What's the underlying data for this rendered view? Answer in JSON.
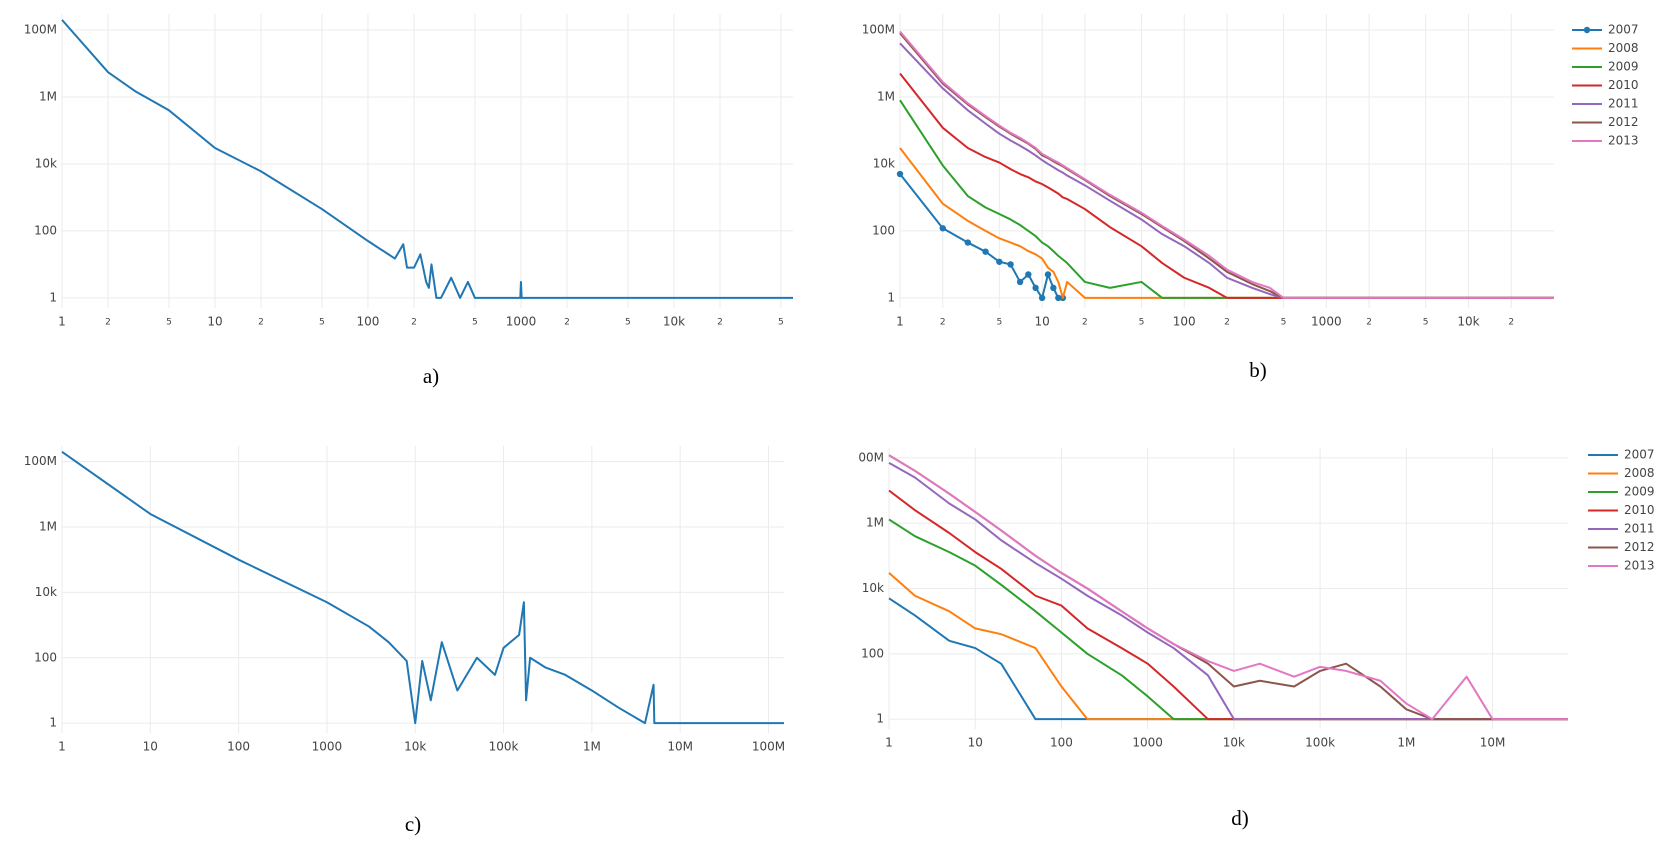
{
  "chart_data": [
    {
      "type": "line",
      "caption": "a)",
      "xscale": "log",
      "yscale": "log",
      "grid": true,
      "color": "#1f77b4",
      "xlim": [
        1,
        60000
      ],
      "ylim": [
        0.5,
        300000000.0
      ],
      "xticks": [
        1,
        2,
        5,
        10,
        {
          "value": 20,
          "label": "2"
        },
        {
          "value": 50,
          "label": "5"
        },
        100,
        {
          "value": 200,
          "label": "2"
        },
        {
          "value": 500,
          "label": "5"
        },
        1000,
        {
          "value": 2000,
          "label": "2"
        },
        {
          "value": 5000,
          "label": "5"
        },
        {
          "value": 10000,
          "label": "10k"
        },
        {
          "value": 20000,
          "label": "2"
        },
        {
          "value": 50000,
          "label": "5"
        }
      ],
      "yticks": [
        1,
        100,
        {
          "value": 10000,
          "label": "10k"
        },
        {
          "value": 1000000,
          "label": "1M"
        },
        {
          "value": 100000000,
          "label": "100M"
        }
      ],
      "x": [
        1,
        2,
        3,
        5,
        10,
        20,
        50,
        100,
        150,
        170,
        180,
        200,
        220,
        240,
        250,
        260,
        280,
        300,
        350,
        400,
        450,
        500,
        990,
        1000,
        1010,
        60000
      ],
      "values": [
        200000000.0,
        5500000.0,
        1500000.0,
        400000.0,
        30000.0,
        6000,
        450,
        50,
        15,
        40,
        8,
        8,
        20,
        3,
        2,
        10,
        1,
        1,
        4,
        1,
        3,
        1,
        1,
        3,
        1,
        1
      ]
    },
    {
      "type": "line",
      "caption": "b)",
      "xscale": "log",
      "yscale": "log",
      "grid": true,
      "legend": "top-right",
      "xlim": [
        1,
        40000
      ],
      "ylim": [
        0.5,
        300000000.0
      ],
      "xticks": [
        1,
        2,
        5,
        10,
        {
          "value": 20,
          "label": "2"
        },
        {
          "value": 50,
          "label": "5"
        },
        100,
        {
          "value": 200,
          "label": "2"
        },
        {
          "value": 500,
          "label": "5"
        },
        1000,
        {
          "value": 2000,
          "label": "2"
        },
        {
          "value": 5000,
          "label": "5"
        },
        {
          "value": 10000,
          "label": "10k"
        },
        {
          "value": 20000,
          "label": "2"
        }
      ],
      "yticks": [
        1,
        100,
        {
          "value": 10000,
          "label": "10k"
        },
        {
          "value": 1000000,
          "label": "1M"
        },
        {
          "value": 100000000,
          "label": "100M"
        }
      ],
      "x": [
        1,
        2,
        3,
        4,
        5,
        6,
        7,
        8,
        9,
        10,
        11,
        12,
        13,
        14,
        15,
        20,
        30,
        50,
        70,
        100,
        150,
        200,
        300,
        400,
        500,
        1000,
        10000,
        40000
      ],
      "series": [
        {
          "name": "2007",
          "color": "#1f77b4",
          "marker": true,
          "values": [
            5000,
            120,
            45,
            24,
            12,
            10,
            3,
            5,
            2,
            1,
            5,
            2,
            1,
            1,
            null,
            null,
            null,
            null,
            null,
            null,
            null,
            null,
            null,
            null,
            null,
            null,
            null,
            null
          ]
        },
        {
          "name": "2008",
          "color": "#ff7f0e",
          "values": [
            30000.0,
            650,
            200,
            100,
            60,
            45,
            35,
            25,
            20,
            15,
            8,
            6,
            3,
            1,
            3,
            1,
            1,
            1,
            1,
            1,
            1,
            1,
            1,
            1,
            1,
            1,
            1,
            1
          ]
        },
        {
          "name": "2009",
          "color": "#2ca02c",
          "values": [
            800000.0,
            9000,
            1100,
            500,
            320,
            220,
            150,
            100,
            70,
            45,
            35,
            25,
            18,
            14,
            11,
            3,
            2,
            3,
            1,
            1,
            1,
            1,
            1,
            1,
            1,
            1,
            1,
            1
          ]
        },
        {
          "name": "2010",
          "color": "#d62728",
          "values": [
            5000000.0,
            120000.0,
            30000.0,
            16000.0,
            11000.0,
            7000,
            5000,
            4000,
            3000,
            2500,
            2000,
            1600,
            1300,
            1000,
            900,
            450,
            130,
            35,
            11,
            4,
            2,
            1,
            1,
            1,
            1,
            1,
            1,
            1
          ]
        },
        {
          "name": "2011",
          "color": "#9467bd",
          "values": [
            40000000.0,
            1800000.0,
            400000.0,
            160000.0,
            80000.0,
            50000.0,
            35000.0,
            25000.0,
            18000.0,
            13000.0,
            10000.0,
            8000,
            6500,
            5500,
            4500,
            2300,
            800,
            220,
            80,
            35,
            11,
            4,
            2,
            1.3,
            1,
            1,
            1,
            1
          ]
        },
        {
          "name": "2012",
          "color": "#8c564b",
          "values": [
            80000000.0,
            2500000.0,
            600000.0,
            250000.0,
            130000.0,
            80000.0,
            55000.0,
            40000.0,
            28000.0,
            18000.0,
            15000.0,
            12000.0,
            10000.0,
            8500,
            7000,
            3300,
            1100,
            320,
            130,
            50,
            15,
            6,
            2.6,
            1.6,
            1,
            1,
            1,
            1
          ]
        },
        {
          "name": "2013",
          "color": "#e377c2",
          "values": [
            90000000.0,
            2800000.0,
            650000.0,
            270000.0,
            140000.0,
            85000.0,
            60000.0,
            42000.0,
            30000.0,
            20000.0,
            16000.0,
            13000.0,
            11000.0,
            9000,
            7500,
            3500,
            1200,
            350,
            140,
            55,
            18,
            7,
            3,
            2,
            1,
            1,
            1,
            1
          ]
        }
      ]
    },
    {
      "type": "line",
      "caption": "c)",
      "xscale": "log",
      "yscale": "log",
      "grid": true,
      "color": "#1f77b4",
      "xlim": [
        1,
        150000000
      ],
      "ylim": [
        0.5,
        300000000.0
      ],
      "xticks": [
        1,
        10,
        100,
        1000,
        {
          "value": 10000,
          "label": "10k"
        },
        {
          "value": 100000,
          "label": "100k"
        },
        {
          "value": 1000000,
          "label": "1M"
        },
        {
          "value": 10000000,
          "label": "10M"
        },
        {
          "value": 100000000,
          "label": "100M"
        }
      ],
      "yticks": [
        1,
        100,
        {
          "value": 10000,
          "label": "10k"
        },
        {
          "value": 1000000,
          "label": "1M"
        },
        {
          "value": 100000000,
          "label": "100M"
        }
      ],
      "x": [
        1,
        10,
        100,
        1000,
        3000,
        5000,
        8000,
        10000,
        12000,
        15000,
        20000,
        30000,
        50000,
        80000,
        100000,
        150000,
        170000,
        180000,
        200000,
        300000,
        500000,
        1000000,
        2000000,
        4000000,
        5000000,
        5100000,
        150000000
      ],
      "values": [
        200000000.0,
        2500000.0,
        100000.0,
        5000,
        900,
        300,
        80,
        1,
        80,
        5,
        300,
        10,
        100,
        30,
        200,
        500,
        5000,
        5,
        100,
        50,
        30,
        10,
        3,
        1,
        15,
        1,
        1
      ]
    },
    {
      "type": "line",
      "caption": "d)",
      "xscale": "log",
      "yscale": "log",
      "grid": true,
      "legend": "top-right",
      "xlim": [
        1,
        75000000
      ],
      "ylim": [
        0.5,
        200000000.0
      ],
      "xticks": [
        1,
        10,
        100,
        1000,
        {
          "value": 10000,
          "label": "10k"
        },
        {
          "value": 100000,
          "label": "100k"
        },
        {
          "value": 1000000,
          "label": "1M"
        },
        {
          "value": 10000000,
          "label": "10M"
        }
      ],
      "yticks": [
        1,
        100,
        {
          "value": 10000,
          "label": "10k"
        },
        {
          "value": 1000000,
          "label": "1M"
        },
        {
          "value": 100000000,
          "label": "00M"
        }
      ],
      "x": [
        1,
        2,
        5,
        10,
        20,
        50,
        100,
        200,
        500,
        1000,
        2000,
        5000,
        10000,
        20000,
        50000,
        100000,
        200000,
        500000,
        1000000,
        2000000,
        5000000,
        10000000,
        75000000
      ],
      "series": [
        {
          "name": "2007",
          "color": "#1f77b4",
          "values": [
            5000,
            1500,
            250,
            150,
            50,
            1,
            1,
            1,
            1,
            1,
            1,
            1,
            1,
            1,
            1,
            1,
            1,
            1,
            1,
            1,
            1,
            1,
            1
          ]
        },
        {
          "name": "2008",
          "color": "#ff7f0e",
          "values": [
            30000.0,
            6000,
            2000,
            600,
            400,
            150,
            10,
            1,
            1,
            1,
            1,
            1,
            1,
            1,
            1,
            1,
            1,
            1,
            1,
            1,
            1,
            1,
            1
          ]
        },
        {
          "name": "2009",
          "color": "#2ca02c",
          "values": [
            1300000.0,
            400000.0,
            130000.0,
            50000.0,
            13000.0,
            2000,
            450,
            100,
            22,
            5,
            1,
            1,
            1,
            1,
            1,
            1,
            1,
            1,
            1,
            1,
            1,
            1,
            1
          ]
        },
        {
          "name": "2010",
          "color": "#d62728",
          "values": [
            10000000.0,
            2500000.0,
            500000.0,
            130000.0,
            40000.0,
            6000,
            3000,
            600,
            150,
            50,
            10,
            1,
            1,
            1,
            1,
            1,
            1,
            1,
            1,
            1,
            1,
            1,
            1
          ]
        },
        {
          "name": "2011",
          "color": "#9467bd",
          "values": [
            70000000.0,
            25000000.0,
            4000000.0,
            1300000.0,
            300000.0,
            60000.0,
            20000.0,
            6000,
            1500,
            450,
            150,
            22,
            1,
            1,
            1,
            1,
            1,
            1,
            1,
            1,
            1,
            1,
            1
          ]
        },
        {
          "name": "2012",
          "color": "#8c564b",
          "values": [
            120000000.0,
            40000000.0,
            8000000.0,
            2200000.0,
            600000.0,
            100000.0,
            30000.0,
            10000.0,
            2000,
            600,
            200,
            50,
            10,
            15,
            10,
            30,
            50,
            10,
            2,
            1,
            1,
            1,
            1
          ]
        },
        {
          "name": "2013",
          "color": "#e377c2",
          "values": [
            120000000.0,
            40000000.0,
            8000000.0,
            2200000.0,
            600000.0,
            100000.0,
            30000.0,
            10000.0,
            2000,
            600,
            200,
            60,
            30,
            50,
            20,
            40,
            30,
            15,
            3,
            1,
            20,
            1,
            1
          ]
        }
      ]
    }
  ]
}
